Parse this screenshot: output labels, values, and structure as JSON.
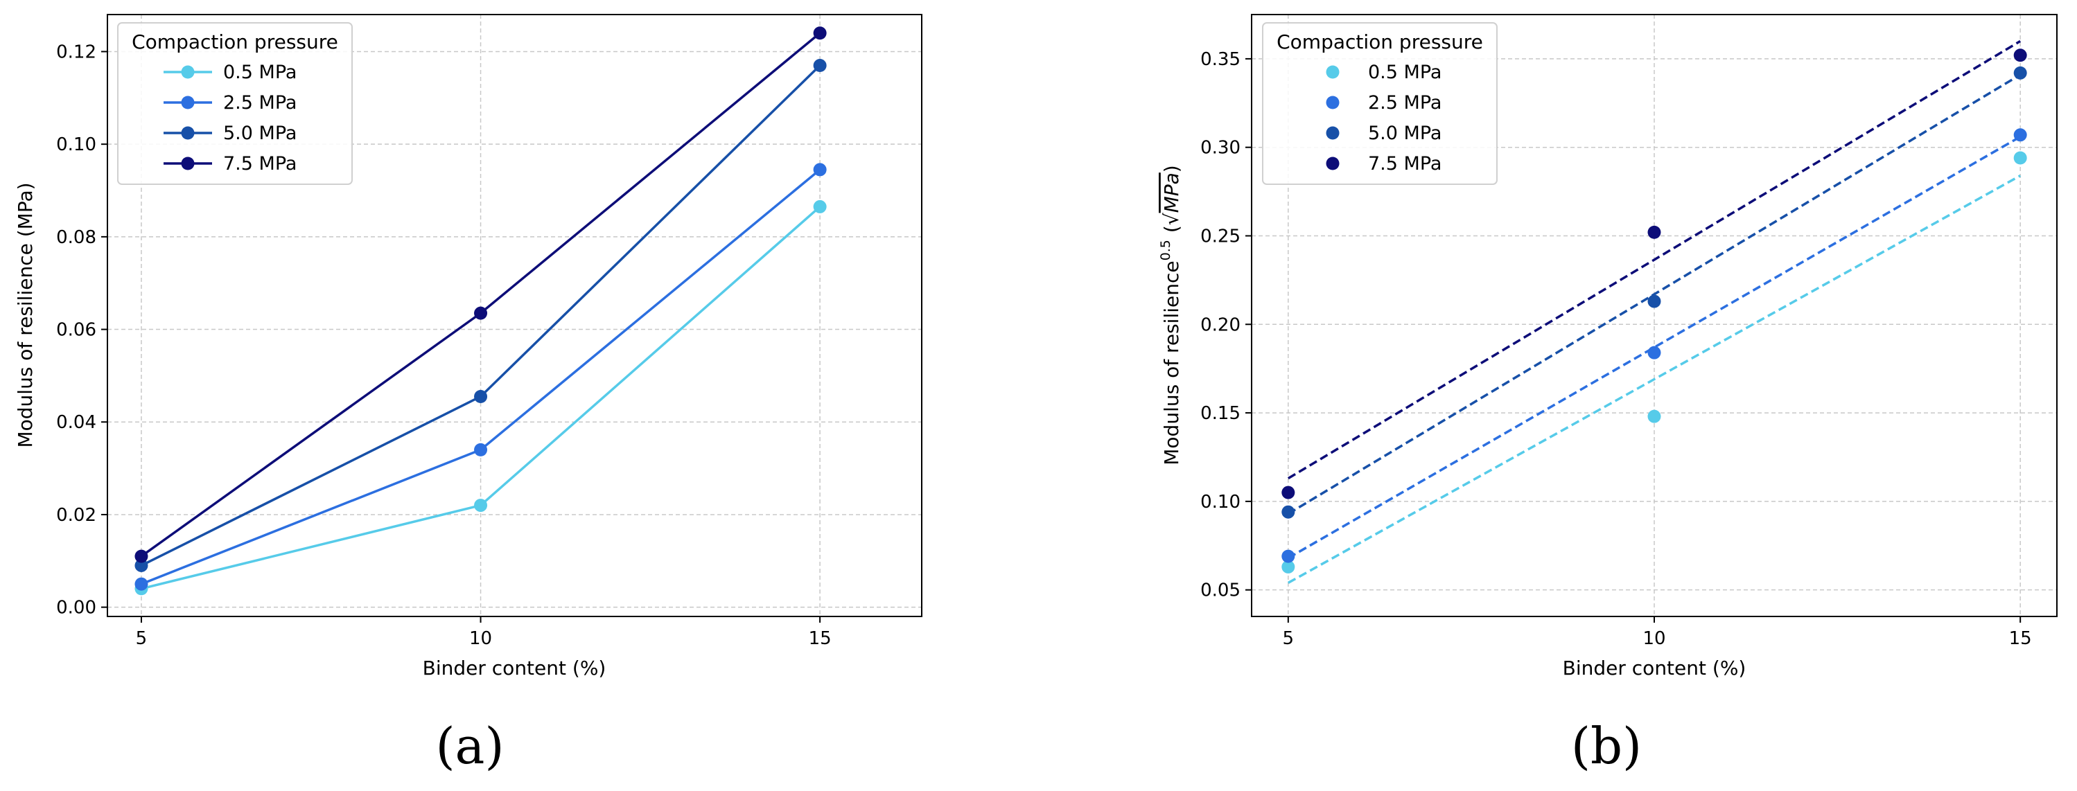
{
  "chart_data": [
    {
      "panel_label": "(a)",
      "type": "line",
      "x": [
        5,
        10,
        15
      ],
      "xlabel": "Binder content (%)",
      "ylabel": "Modulus of resilience (MPa)",
      "xlim": [
        4.5,
        16.5
      ],
      "ylim": [
        -0.002,
        0.128
      ],
      "xticks": [
        5,
        10,
        15
      ],
      "yticks": [
        0.0,
        0.02,
        0.04,
        0.06,
        0.08,
        0.1,
        0.12
      ],
      "ytick_labels": [
        "0.00",
        "0.02",
        "0.04",
        "0.06",
        "0.08",
        "0.10",
        "0.12"
      ],
      "grid": true,
      "legend": {
        "title": "Compaction pressure",
        "placement": "top-left"
      },
      "series": [
        {
          "name": "0.5 MPa",
          "color": "#56cbe9",
          "values": [
            0.004,
            0.022,
            0.0865
          ]
        },
        {
          "name": "2.5 MPa",
          "color": "#2c6fe0",
          "values": [
            0.005,
            0.034,
            0.0945
          ]
        },
        {
          "name": "5.0 MPa",
          "color": "#1750a8",
          "values": [
            0.009,
            0.0455,
            0.117
          ]
        },
        {
          "name": "7.5 MPa",
          "color": "#0d0d78",
          "values": [
            0.011,
            0.0635,
            0.124
          ]
        }
      ]
    },
    {
      "panel_label": "(b)",
      "type": "scatter",
      "x": [
        5,
        10,
        15
      ],
      "xlabel": "Binder content (%)",
      "ylabel_main": "Modulus of resilience",
      "ylabel_exp": "0.5",
      "ylabel_open": "(√",
      "ylabel_unit": "MPa",
      "ylabel_close": ")",
      "xlim": [
        4.5,
        15.5
      ],
      "ylim": [
        0.035,
        0.375
      ],
      "xticks": [
        5,
        10,
        15
      ],
      "yticks": [
        0.05,
        0.1,
        0.15,
        0.2,
        0.25,
        0.3,
        0.35
      ],
      "ytick_labels": [
        "0.05",
        "0.10",
        "0.15",
        "0.20",
        "0.25",
        "0.30",
        "0.35"
      ],
      "grid": true,
      "legend": {
        "title": "Compaction pressure",
        "placement": "top-left"
      },
      "series": [
        {
          "name": "0.5 MPa",
          "color": "#56cbe9",
          "values": [
            0.063,
            0.148,
            0.294
          ],
          "fit": [
            0.054,
            0.284
          ]
        },
        {
          "name": "2.5 MPa",
          "color": "#2c6fe0",
          "values": [
            0.069,
            0.184,
            0.307
          ],
          "fit": [
            0.068,
            0.306
          ]
        },
        {
          "name": "5.0 MPa",
          "color": "#1750a8",
          "values": [
            0.094,
            0.213,
            0.342
          ],
          "fit": [
            0.093,
            0.341
          ]
        },
        {
          "name": "7.5 MPa",
          "color": "#0d0d78",
          "values": [
            0.105,
            0.252,
            0.352
          ],
          "fit": [
            0.113,
            0.36
          ]
        }
      ]
    }
  ]
}
